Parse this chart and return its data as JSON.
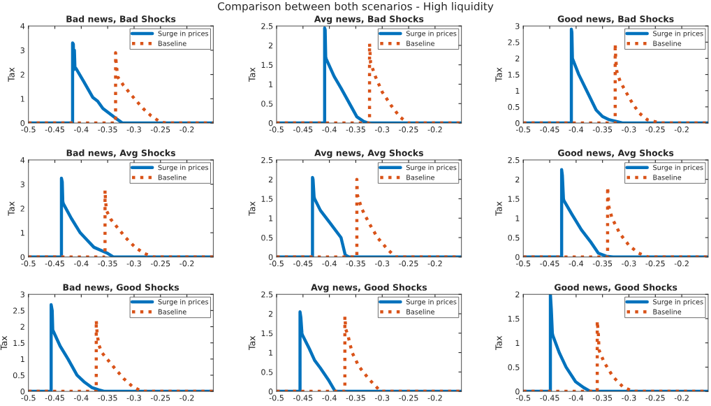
{
  "chart_data": [
    {
      "type": "line",
      "title": "Bad news, Bad Shocks",
      "ylabel": "Tax",
      "xlim": [
        -0.5,
        -0.15
      ],
      "xticks": [
        -0.5,
        -0.45,
        -0.4,
        -0.35,
        -0.3,
        -0.25,
        -0.2
      ],
      "ylim": [
        0,
        4
      ],
      "yticks": [
        0,
        1,
        2,
        3,
        4
      ],
      "legend": "top right",
      "annotations": [
        "Comparison between both scenarios - High liquidity"
      ],
      "series": [
        {
          "name": "Surge in prices",
          "color": "#0072bd",
          "line_style": "solid",
          "x": [
            -0.5,
            -0.4164,
            -0.4164,
            -0.415,
            -0.414,
            -0.413,
            -0.412,
            -0.41,
            -0.395,
            -0.378,
            -0.369,
            -0.359,
            -0.335,
            -0.322,
            -0.15
          ],
          "values": [
            0,
            0,
            3.3,
            3.25,
            2.2,
            3.0,
            2.3,
            2.25,
            1.7,
            1.05,
            0.9,
            0.6,
            0.2,
            0,
            0
          ]
        },
        {
          "name": "Baseline",
          "color": "#d95319",
          "line_style": "dotted",
          "x": [
            -0.5,
            -0.335,
            -0.335,
            -0.334,
            -0.333,
            -0.331,
            -0.32,
            -0.303,
            -0.283,
            -0.268,
            -0.251,
            -0.24,
            -0.15
          ],
          "values": [
            0,
            0,
            2.9,
            2.5,
            2.3,
            1.9,
            1.55,
            1.1,
            0.6,
            0.3,
            0.05,
            0,
            0
          ]
        }
      ]
    },
    {
      "type": "line",
      "title": "Avg news, Bad Shocks",
      "ylabel": "Tax",
      "xlim": [
        -0.5,
        -0.15
      ],
      "xticks": [
        -0.5,
        -0.45,
        -0.4,
        -0.35,
        -0.3,
        -0.25,
        -0.2
      ],
      "ylim": [
        0,
        2.5
      ],
      "yticks": [
        0,
        0.5,
        1,
        1.5,
        2,
        2.5
      ],
      "legend": "top right",
      "series": [
        {
          "name": "Surge in prices",
          "color": "#0072bd",
          "line_style": "solid",
          "x": [
            -0.5,
            -0.409,
            -0.409,
            -0.408,
            -0.407,
            -0.406,
            -0.391,
            -0.378,
            -0.365,
            -0.348,
            -0.335,
            -0.326,
            -0.15
          ],
          "values": [
            0,
            0,
            2.45,
            2.4,
            1.7,
            1.65,
            1.2,
            0.9,
            0.58,
            0.16,
            0.04,
            0,
            0
          ]
        },
        {
          "name": "Baseline",
          "color": "#d95319",
          "line_style": "dotted",
          "x": [
            -0.5,
            -0.324,
            -0.324,
            -0.323,
            -0.322,
            -0.313,
            -0.3,
            -0.283,
            -0.266,
            -0.251,
            -0.15
          ],
          "values": [
            0,
            0,
            2.05,
            1.8,
            1.55,
            1.2,
            0.8,
            0.45,
            0.15,
            0,
            0
          ]
        }
      ]
    },
    {
      "type": "line",
      "title": "Good news, Bad Shocks",
      "ylabel": "Tax",
      "xlim": [
        -0.5,
        -0.15
      ],
      "xticks": [
        -0.5,
        -0.45,
        -0.4,
        -0.35,
        -0.3,
        -0.25,
        -0.2
      ],
      "ylim": [
        0,
        3
      ],
      "yticks": [
        0,
        0.5,
        1,
        1.5,
        2,
        2.5,
        3
      ],
      "legend": "top right",
      "series": [
        {
          "name": "Surge in prices",
          "color": "#0072bd",
          "line_style": "solid",
          "x": [
            -0.5,
            -0.409,
            -0.409,
            -0.408,
            -0.407,
            -0.395,
            -0.38,
            -0.362,
            -0.35,
            -0.337,
            -0.311,
            -0.15
          ],
          "values": [
            0,
            0,
            2.9,
            2.8,
            2.0,
            1.5,
            1.0,
            0.4,
            0.2,
            0.1,
            0,
            0
          ]
        },
        {
          "name": "Baseline",
          "color": "#d95319",
          "line_style": "dotted",
          "x": [
            -0.5,
            -0.326,
            -0.326,
            -0.325,
            -0.323,
            -0.317,
            -0.307,
            -0.293,
            -0.28,
            -0.265,
            -0.241,
            -0.15
          ],
          "values": [
            0,
            0,
            2.45,
            2.0,
            1.6,
            1.3,
            1.0,
            0.6,
            0.3,
            0.1,
            0,
            0
          ]
        }
      ]
    },
    {
      "type": "line",
      "title": "Bad news, Avg Shocks",
      "ylabel": "Tax",
      "xlim": [
        -0.5,
        -0.15
      ],
      "xticks": [
        -0.5,
        -0.45,
        -0.4,
        -0.35,
        -0.3,
        -0.25,
        -0.2
      ],
      "ylim": [
        0,
        4
      ],
      "yticks": [
        0,
        1,
        2,
        3,
        4
      ],
      "legend": "top right",
      "series": [
        {
          "name": "Surge in prices",
          "color": "#0072bd",
          "line_style": "solid",
          "x": [
            -0.5,
            -0.4375,
            -0.4375,
            -0.436,
            -0.435,
            -0.434,
            -0.419,
            -0.402,
            -0.389,
            -0.376,
            -0.35,
            -0.339,
            -0.15
          ],
          "values": [
            0,
            0,
            3.25,
            3.1,
            2.3,
            2.2,
            1.6,
            1.0,
            0.7,
            0.4,
            0.15,
            0,
            0
          ]
        },
        {
          "name": "Baseline",
          "color": "#d95319",
          "line_style": "dotted",
          "x": [
            -0.5,
            -0.355,
            -0.355,
            -0.354,
            -0.352,
            -0.344,
            -0.331,
            -0.316,
            -0.298,
            -0.281,
            -0.264,
            -0.15
          ],
          "values": [
            0,
            0,
            2.75,
            2.3,
            1.9,
            1.55,
            1.2,
            0.8,
            0.4,
            0.15,
            0,
            0
          ]
        }
      ]
    },
    {
      "type": "line",
      "title": "Avg news, Avg Shocks",
      "ylabel": "Tax",
      "xlim": [
        -0.5,
        -0.15
      ],
      "xticks": [
        -0.5,
        -0.45,
        -0.4,
        -0.35,
        -0.3,
        -0.25,
        -0.2
      ],
      "ylim": [
        0,
        2.5
      ],
      "yticks": [
        0,
        0.5,
        1,
        1.5,
        2,
        2.5
      ],
      "legend": "top right",
      "series": [
        {
          "name": "Surge in prices",
          "color": "#0072bd",
          "line_style": "solid",
          "x": [
            -0.5,
            -0.432,
            -0.432,
            -0.431,
            -0.429,
            -0.428,
            -0.417,
            -0.4,
            -0.378,
            -0.37,
            -0.363,
            -0.15
          ],
          "values": [
            0,
            0,
            2.05,
            2.0,
            1.55,
            1.5,
            1.2,
            0.9,
            0.5,
            0.05,
            0,
            0
          ]
        },
        {
          "name": "Baseline",
          "color": "#d95319",
          "line_style": "dotted",
          "x": [
            -0.5,
            -0.348,
            -0.348,
            -0.347,
            -0.339,
            -0.326,
            -0.309,
            -0.29,
            -0.275,
            -0.15
          ],
          "values": [
            0,
            0,
            2.0,
            1.6,
            1.25,
            0.9,
            0.5,
            0.2,
            0,
            0
          ]
        }
      ]
    },
    {
      "type": "line",
      "title": "Good news, Avg Shocks",
      "ylabel": "Tax",
      "xlim": [
        -0.5,
        -0.15
      ],
      "xticks": [
        -0.5,
        -0.45,
        -0.4,
        -0.35,
        -0.3,
        -0.25,
        -0.2
      ],
      "ylim": [
        0,
        2.5
      ],
      "yticks": [
        0,
        0.5,
        1,
        1.5,
        2,
        2.5
      ],
      "legend": "top right",
      "series": [
        {
          "name": "Surge in prices",
          "color": "#0072bd",
          "line_style": "solid",
          "x": [
            -0.5,
            -0.4274,
            -0.4274,
            -0.426,
            -0.424,
            -0.423,
            -0.408,
            -0.39,
            -0.373,
            -0.358,
            -0.343,
            -0.33,
            -0.15
          ],
          "values": [
            0,
            0,
            2.25,
            2.1,
            1.5,
            1.45,
            1.1,
            0.7,
            0.4,
            0.1,
            0.02,
            0,
            0
          ]
        },
        {
          "name": "Baseline",
          "color": "#d95319",
          "line_style": "dotted",
          "x": [
            -0.5,
            -0.3404,
            -0.3404,
            -0.338,
            -0.332,
            -0.317,
            -0.3,
            -0.282,
            -0.264,
            -0.15
          ],
          "values": [
            0,
            0,
            1.8,
            1.3,
            1.0,
            0.6,
            0.3,
            0.1,
            0,
            0
          ]
        }
      ]
    },
    {
      "type": "line",
      "title": "Bad news, Good Shocks",
      "ylabel": "Tax",
      "xlim": [
        -0.5,
        -0.15
      ],
      "xticks": [
        -0.5,
        -0.45,
        -0.4,
        -0.35,
        -0.3,
        -0.25,
        -0.2
      ],
      "ylim": [
        0,
        3
      ],
      "yticks": [
        0,
        0.5,
        1,
        1.5,
        2,
        2.5,
        3
      ],
      "legend": "top right",
      "series": [
        {
          "name": "Surge in prices",
          "color": "#0072bd",
          "line_style": "solid",
          "x": [
            -0.5,
            -0.457,
            -0.457,
            -0.455,
            -0.454,
            -0.4526,
            -0.44,
            -0.425,
            -0.408,
            -0.395,
            -0.38,
            -0.367,
            -0.356,
            -0.15
          ],
          "values": [
            0,
            0,
            2.68,
            2.5,
            1.9,
            1.85,
            1.4,
            1.0,
            0.5,
            0.3,
            0.12,
            0.05,
            0,
            0
          ]
        },
        {
          "name": "Baseline",
          "color": "#d95319",
          "line_style": "dotted",
          "x": [
            -0.5,
            -0.3716,
            -0.3716,
            -0.37,
            -0.367,
            -0.361,
            -0.341,
            -0.32,
            -0.303,
            -0.285,
            -0.15
          ],
          "values": [
            0,
            0,
            2.2,
            1.8,
            1.45,
            1.2,
            0.8,
            0.4,
            0.15,
            0,
            0
          ]
        }
      ]
    },
    {
      "type": "line",
      "title": "Avg news, Good Shocks",
      "ylabel": "Tax",
      "xlim": [
        -0.5,
        -0.15
      ],
      "xticks": [
        -0.5,
        -0.45,
        -0.4,
        -0.35,
        -0.3,
        -0.25,
        -0.2
      ],
      "ylim": [
        0,
        2.5
      ],
      "yticks": [
        0,
        0.5,
        1,
        1.5,
        2,
        2.5
      ],
      "legend": "top right",
      "series": [
        {
          "name": "Surge in prices",
          "color": "#0072bd",
          "line_style": "solid",
          "x": [
            -0.5,
            -0.4556,
            -0.4556,
            -0.454,
            -0.452,
            -0.451,
            -0.438,
            -0.428,
            -0.417,
            -0.402,
            -0.389,
            -0.15
          ],
          "values": [
            0,
            0,
            2.05,
            1.9,
            1.5,
            1.45,
            1.1,
            0.8,
            0.6,
            0.3,
            0,
            0
          ]
        },
        {
          "name": "Baseline",
          "color": "#d95319",
          "line_style": "dotted",
          "x": [
            -0.5,
            -0.3707,
            -0.3707,
            -0.369,
            -0.365,
            -0.357,
            -0.344,
            -0.326,
            -0.303,
            -0.15
          ],
          "values": [
            0,
            0,
            1.93,
            1.6,
            1.45,
            1.0,
            0.64,
            0.33,
            0,
            0
          ]
        }
      ]
    },
    {
      "type": "line",
      "title": "Good news, Good Shocks",
      "ylabel": "Tax",
      "xlim": [
        -0.5,
        -0.15
      ],
      "xticks": [
        -0.5,
        -0.45,
        -0.4,
        -0.35,
        -0.3,
        -0.25,
        -0.2
      ],
      "ylim": [
        0,
        2
      ],
      "yticks": [
        0,
        0.5,
        1,
        1.5,
        2
      ],
      "legend": "top right",
      "series": [
        {
          "name": "Surge in prices",
          "color": "#0072bd",
          "line_style": "solid",
          "x": [
            -0.5,
            -0.4487,
            -0.4487,
            -0.447,
            -0.445,
            -0.444,
            -0.432,
            -0.419,
            -0.401,
            -0.386,
            -0.373,
            -0.15
          ],
          "values": [
            0,
            0,
            2.0,
            1.7,
            1.2,
            1.15,
            0.8,
            0.5,
            0.2,
            0.08,
            0,
            0
          ]
        },
        {
          "name": "Baseline",
          "color": "#d95319",
          "line_style": "dotted",
          "x": [
            -0.5,
            -0.36,
            -0.36,
            -0.358,
            -0.3565,
            -0.347,
            -0.33,
            -0.312,
            -0.293,
            -0.15
          ],
          "values": [
            0,
            0,
            1.45,
            1.2,
            0.85,
            0.6,
            0.3,
            0.1,
            0,
            0
          ]
        }
      ]
    }
  ]
}
